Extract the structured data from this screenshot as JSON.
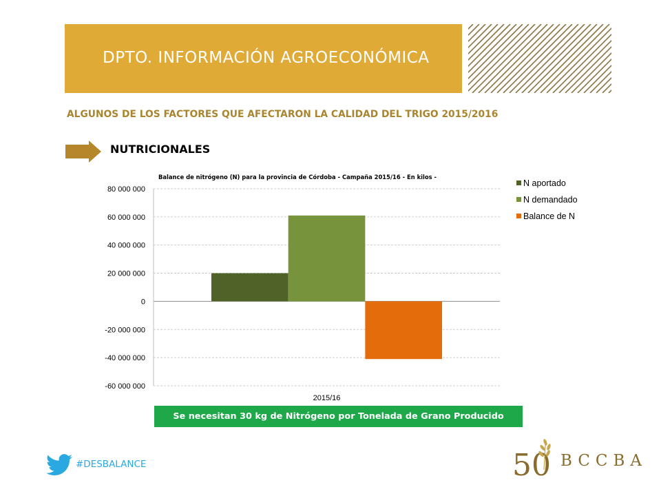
{
  "header": {
    "title": "DPTO. INFORMACIÓN AGROECONÓMICA"
  },
  "subtitle": "ALGUNOS DE LOS FACTORES QUE AFECTARON LA CALIDAD DEL TRIGO 2015/2016",
  "section": {
    "label": "NUTRICIONALES"
  },
  "chart_data": {
    "type": "bar",
    "title": "Balance  de  nitrógeno (N)  para  la  provincia  de  Córdoba   - Campaña  2015/16 - En kilos -",
    "categories": [
      "2015/16"
    ],
    "series": [
      {
        "name": "N aportado",
        "values": [
          20000000
        ],
        "color": "#4f6228"
      },
      {
        "name": "N demandado",
        "values": [
          61000000
        ],
        "color": "#77933c"
      },
      {
        "name": "Balance de N",
        "values": [
          -41000000
        ],
        "color": "#e46c0a"
      }
    ],
    "yticks": [
      "80 000 000",
      "60 000 000",
      "40 000 000",
      "20 000 000",
      "0",
      "-20 000 000",
      "-40 000 000",
      "-60 000 000"
    ],
    "ylim": [
      -60000000,
      80000000
    ],
    "grid": true,
    "legend": "right"
  },
  "note": "Se necesitan 30 kg de Nitrógeno por Tonelada de Grano Producido",
  "footer": {
    "hashtag": "#DESBALANCE",
    "logo_number": "50",
    "logo_text": "BCCBA"
  },
  "colors": {
    "banner": "#e0aa36",
    "subtitle": "#a9862e",
    "arrow": "#b5862a",
    "note_bg": "#1ea84a",
    "twitter": "#2aa9e0",
    "logo": "#8a6b2e"
  }
}
